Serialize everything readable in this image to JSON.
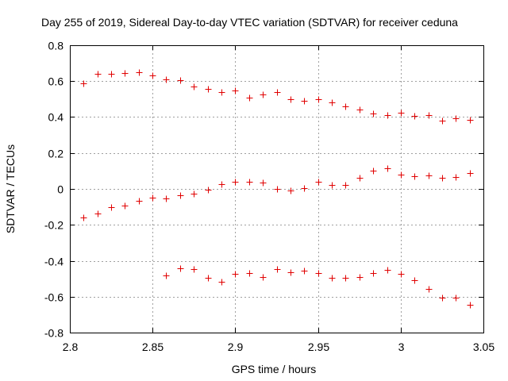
{
  "chart_data": {
    "type": "scatter",
    "title": "Day 255 of 2019, Sidereal Day-to-day VTEC variation (SDTVAR) for receiver ceduna",
    "xlabel": "GPS time / hours",
    "ylabel": "SDTVAR / TECUs",
    "xlim": [
      2.8,
      3.05
    ],
    "ylim": [
      -0.8,
      0.8
    ],
    "x_ticks": [
      2.8,
      2.85,
      2.9,
      2.95,
      3.0,
      3.05
    ],
    "x_tick_labels": [
      "2.8",
      "2.85",
      "2.9",
      "2.95",
      "3",
      "3.05"
    ],
    "y_ticks": [
      -0.8,
      -0.6,
      -0.4,
      -0.2,
      0,
      0.2,
      0.4,
      0.6,
      0.8
    ],
    "y_tick_labels": [
      "-0.8",
      "-0.6",
      "-0.4",
      "-0.2",
      "0",
      "0.2",
      "0.4",
      "0.6",
      "0.8"
    ],
    "grid": true,
    "marker": "+",
    "color": "#e00000",
    "series": [
      {
        "name": "upper",
        "x": [
          2.8083,
          2.8167,
          2.825,
          2.8333,
          2.8417,
          2.85,
          2.8583,
          2.8667,
          2.875,
          2.8833,
          2.8917,
          2.9,
          2.9083,
          2.9167,
          2.925,
          2.9333,
          2.9417,
          2.95,
          2.9583,
          2.9667,
          2.975,
          2.9833,
          2.9917,
          3.0,
          3.0083,
          3.0167,
          3.025,
          3.0333,
          3.0417
        ],
        "y": [
          0.59,
          0.64,
          0.64,
          0.645,
          0.65,
          0.63,
          0.61,
          0.605,
          0.57,
          0.555,
          0.54,
          0.55,
          0.51,
          0.525,
          0.54,
          0.5,
          0.49,
          0.5,
          0.48,
          0.46,
          0.44,
          0.42,
          0.41,
          0.425,
          0.405,
          0.41,
          0.38,
          0.395,
          0.385
        ]
      },
      {
        "name": "middle",
        "x": [
          2.8083,
          2.8167,
          2.825,
          2.8333,
          2.8417,
          2.85,
          2.8583,
          2.8667,
          2.875,
          2.8833,
          2.8917,
          2.9,
          2.9083,
          2.9167,
          2.925,
          2.9333,
          2.9417,
          2.95,
          2.9583,
          2.9667,
          2.975,
          2.9833,
          2.9917,
          3.0,
          3.0083,
          3.0167,
          3.025,
          3.0333,
          3.0417
        ],
        "y": [
          -0.16,
          -0.135,
          -0.1,
          -0.095,
          -0.065,
          -0.05,
          -0.055,
          -0.035,
          -0.025,
          -0.005,
          0.025,
          0.04,
          0.04,
          0.035,
          0.0,
          -0.01,
          0.005,
          0.04,
          0.02,
          0.02,
          0.06,
          0.1,
          0.115,
          0.08,
          0.07,
          0.075,
          0.06,
          0.065,
          0.09
        ]
      },
      {
        "name": "lower",
        "x": [
          2.8583,
          2.8667,
          2.875,
          2.8833,
          2.8917,
          2.9,
          2.9083,
          2.9167,
          2.925,
          2.9333,
          2.9417,
          2.95,
          2.9583,
          2.9667,
          2.975,
          2.9833,
          2.9917,
          3.0,
          3.0083,
          3.0167,
          3.025,
          3.0333,
          3.0417
        ],
        "y": [
          -0.48,
          -0.44,
          -0.445,
          -0.495,
          -0.515,
          -0.475,
          -0.47,
          -0.49,
          -0.445,
          -0.465,
          -0.455,
          -0.47,
          -0.495,
          -0.495,
          -0.49,
          -0.47,
          -0.45,
          -0.475,
          -0.51,
          -0.555,
          -0.605,
          -0.605,
          -0.645
        ]
      }
    ]
  }
}
